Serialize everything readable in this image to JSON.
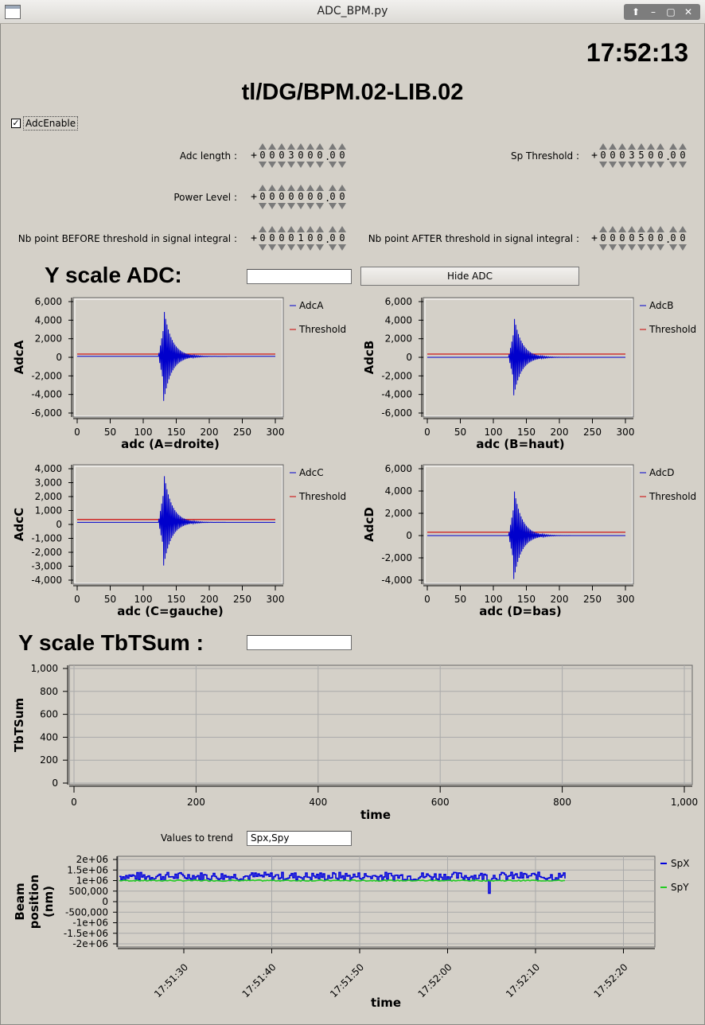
{
  "window": {
    "title": "ADC_BPM.py",
    "buttons": [
      "⬆",
      "–",
      "▢",
      "✕"
    ]
  },
  "clock": "17:52:13",
  "device_name": "tl/DG/BPM.02-LIB.02",
  "adc_enable": {
    "label": "AdcEnable",
    "checked": true
  },
  "fields": {
    "adc_length": {
      "label": "Adc length :",
      "sign": "+",
      "digits": "0003000",
      "decimals": "00"
    },
    "power_level": {
      "label": "Power Level :",
      "sign": "+",
      "digits": "0000000",
      "decimals": "00"
    },
    "nb_before": {
      "label": "Nb point BEFORE threshold in signal integral :",
      "sign": "+",
      "digits": "0000100",
      "decimals": "00"
    },
    "sp_threshold": {
      "label": "Sp Threshold :",
      "sign": "+",
      "digits": "0003500",
      "decimals": "00"
    },
    "nb_after": {
      "label": "Nb point AFTER threshold in signal integral :",
      "sign": "+",
      "digits": "0000500",
      "decimals": "00"
    }
  },
  "y_scale_adc": {
    "title": "Y scale ADC:",
    "value": "",
    "hide_button": "Hide ADC"
  },
  "y_scale_tbt": {
    "title": "Y scale TbTSum :",
    "value": ""
  },
  "trend": {
    "label": "Values to trend",
    "value": "Spx,Spy"
  },
  "chart_data": [
    {
      "type": "line",
      "ylabel": "AdcA",
      "xlabel": "adc  (A=droite)",
      "xlim": [
        0,
        300
      ],
      "ylim": [
        -6000,
        6000
      ],
      "xticks": [
        "0",
        "50",
        "100",
        "150",
        "200",
        "250",
        "300"
      ],
      "yticks": [
        "6,000",
        "4,000",
        "2,000",
        "0",
        "-2,000",
        "-4,000",
        "-6,000"
      ],
      "series": [
        {
          "name": "AdcA",
          "color": "#0000cc",
          "peak_index": 131,
          "peak_max": 5200,
          "peak_min": -4800,
          "baseline": 100
        },
        {
          "name": "Threshold",
          "color": "#cc0000",
          "constant": 350
        }
      ]
    },
    {
      "type": "line",
      "ylabel": "AdcB",
      "xlabel": "adc  (B=haut)",
      "xlim": [
        0,
        300
      ],
      "ylim": [
        -6000,
        6000
      ],
      "xticks": [
        "0",
        "50",
        "100",
        "150",
        "200",
        "250",
        "300"
      ],
      "yticks": [
        "6,000",
        "4,000",
        "2,000",
        "0",
        "-2,000",
        "-4,000",
        "-6,000"
      ],
      "series": [
        {
          "name": "AdcB",
          "color": "#0000cc",
          "peak_index": 131,
          "peak_max": 4500,
          "peak_min": -4100,
          "baseline": 0
        },
        {
          "name": "Threshold",
          "color": "#cc0000",
          "constant": 350
        }
      ]
    },
    {
      "type": "line",
      "ylabel": "AdcC",
      "xlabel": "adc  (C=gauche)",
      "xlim": [
        0,
        300
      ],
      "ylim": [
        -4000,
        4000
      ],
      "xticks": [
        "0",
        "50",
        "100",
        "150",
        "200",
        "250",
        "300"
      ],
      "yticks": [
        "4,000",
        "3,000",
        "2,000",
        "1,000",
        "0",
        "-1,000",
        "-2,000",
        "-3,000",
        "-4,000"
      ],
      "series": [
        {
          "name": "AdcC",
          "color": "#0000cc",
          "peak_index": 131,
          "peak_max": 3600,
          "peak_min": -3100,
          "baseline": 150
        },
        {
          "name": "Threshold",
          "color": "#cc0000",
          "constant": 350
        }
      ]
    },
    {
      "type": "line",
      "ylabel": "AdcD",
      "xlabel": "adc  (D=bas)",
      "xlim": [
        0,
        300
      ],
      "ylim": [
        -4000,
        6000
      ],
      "xticks": [
        "0",
        "50",
        "100",
        "150",
        "200",
        "250",
        "300"
      ],
      "yticks": [
        "6,000",
        "4,000",
        "2,000",
        "0",
        "-2,000",
        "-4,000"
      ],
      "series": [
        {
          "name": "AdcD",
          "color": "#0000cc",
          "peak_index": 131,
          "peak_max": 4300,
          "peak_min": -3900,
          "baseline": 0
        },
        {
          "name": "Threshold",
          "color": "#cc0000",
          "constant": 300
        }
      ]
    },
    {
      "type": "line",
      "ylabel": "TbTSum",
      "xlabel": "time",
      "xlim": [
        0,
        1000
      ],
      "ylim": [
        0,
        1000
      ],
      "xticks": [
        "0",
        "200",
        "400",
        "600",
        "800",
        "1,000"
      ],
      "yticks": [
        "1,000",
        "800",
        "600",
        "400",
        "200",
        "0"
      ],
      "grid": true,
      "series": []
    },
    {
      "type": "line",
      "ylabel": "Beam position (nm)",
      "xlabel": "time",
      "xticks": [
        "17:51:30",
        "17:51:40",
        "17:51:50",
        "17:52:00",
        "17:52:10",
        "17:52:20"
      ],
      "yticks": [
        "2e+06",
        "1.5e+06",
        "1e+06",
        "500,000",
        "0",
        "-500,000",
        "-1e+06",
        "-1.5e+06",
        "-2e+06"
      ],
      "ylim": [
        -2000000,
        2000000
      ],
      "grid": true,
      "series": [
        {
          "name": "SpX",
          "color": "#0000dd",
          "mean": 1200000,
          "spread": 200000,
          "dip_time": "17:52:05",
          "dip_value": 400000
        },
        {
          "name": "SpY",
          "color": "#22cc22",
          "mean": 1000000,
          "spread": 30000
        }
      ]
    }
  ]
}
